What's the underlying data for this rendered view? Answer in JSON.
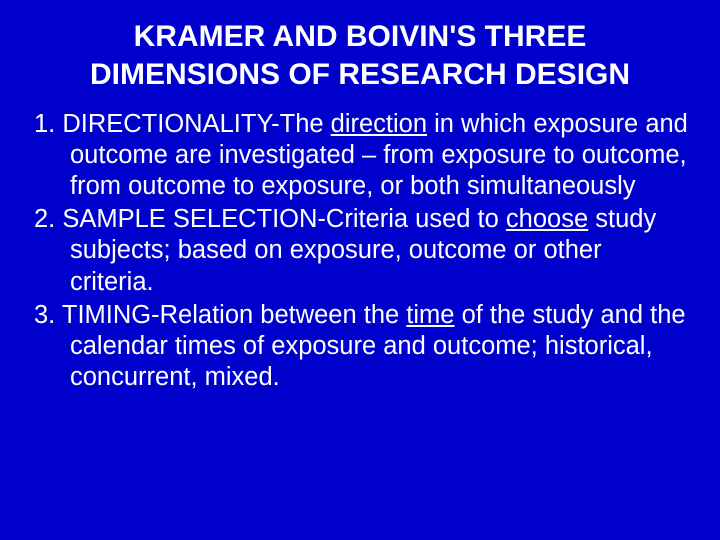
{
  "colors": {
    "background": "#0000cc",
    "text": "#ffffff"
  },
  "typography": {
    "title_fontsize": 30,
    "body_fontsize": 25.5,
    "title_weight": "bold",
    "body_weight": "normal",
    "line_height_title": 1.25,
    "line_height_body": 1.22
  },
  "title": "KRAMER AND BOIVIN'S THREE DIMENSIONS OF RESEARCH DESIGN",
  "items": [
    {
      "lead": "1. DIRECTIONALITY-The ",
      "uword": "direction",
      "rest": " in which exposure and outcome are investigated – from exposure to outcome, from outcome to exposure, or both simultaneously"
    },
    {
      "lead": " 2. SAMPLE SELECTION-Criteria used to ",
      "uword": "choose",
      "rest": " study subjects; based on exposure, outcome or other criteria."
    },
    {
      "lead": " 3. TIMING-Relation between the ",
      "uword": "time",
      "rest": " of the study and the calendar times of exposure and outcome; historical, concurrent, mixed."
    }
  ]
}
